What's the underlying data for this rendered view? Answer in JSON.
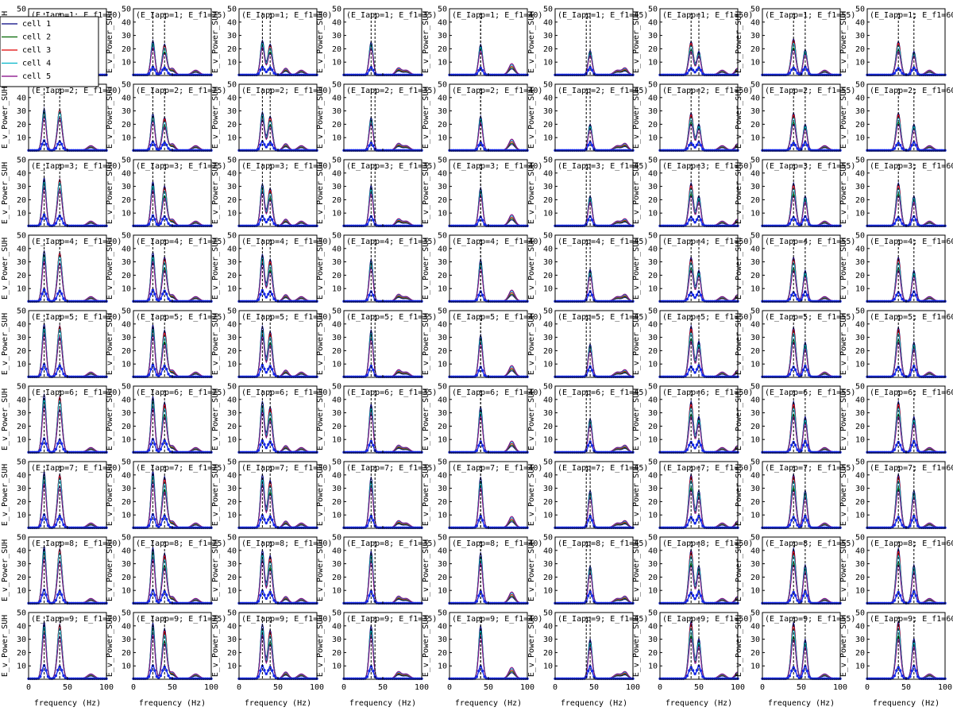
{
  "chart_data": {
    "type": "line",
    "layout": "grid of small multiples: rows = E_Iapp 1-9, columns = E_f1 20-60",
    "x_axis": {
      "label": "frequency (Hz)",
      "range": [
        0,
        100
      ],
      "ticks": [
        0,
        50,
        100
      ]
    },
    "y_axis": {
      "label": "E_v_Power_SUH",
      "range": [
        0,
        50
      ],
      "ticks": [
        10,
        20,
        30,
        40,
        50
      ]
    },
    "panel_title_format": "(E_Iapp={r}; E_f1={c})",
    "rows": [
      1,
      2,
      3,
      4,
      5,
      6,
      7,
      8,
      9
    ],
    "columns": [
      20,
      25,
      30,
      35,
      40,
      45,
      50,
      55,
      60
    ],
    "second_frequency_hz": 40,
    "legend": {
      "placement": "top-left panel, upper-left corner",
      "entries": [
        "cell 1",
        "cell 2",
        "cell 3",
        "cell 4",
        "cell 5"
      ]
    },
    "series_colors": {
      "cell 1": "#00007f",
      "cell 2": "#006400",
      "cell 3": "#e00000",
      "cell 4": "#00b4c8",
      "cell 5": "#800080",
      "mean": "#1428e6",
      "stimulus_marker": "#000000"
    },
    "peak_heights_estimate": {
      "note": "approximate tallest peak per panel, rows = E_Iapp 1..9, cols = E_f1 20..60",
      "values": [
        [
          30,
          27,
          27,
          26,
          24,
          26,
          25,
          27,
          25
        ],
        [
          33,
          29,
          30,
          26,
          27,
          28,
          28,
          28,
          28
        ],
        [
          38,
          35,
          33,
          32,
          30,
          32,
          32,
          32,
          32
        ],
        [
          40,
          39,
          37,
          33,
          33,
          34,
          33,
          33,
          33
        ],
        [
          42,
          41,
          40,
          37,
          33,
          35,
          38,
          37,
          37
        ],
        [
          46,
          44,
          40,
          38,
          36,
          36,
          38,
          38,
          38
        ],
        [
          44,
          45,
          42,
          40,
          40,
          40,
          40,
          40,
          40
        ],
        [
          45,
          44,
          42,
          41,
          40,
          40,
          40,
          41,
          41
        ],
        [
          45,
          44,
          43,
          42,
          42,
          42,
          43,
          42,
          43
        ]
      ]
    }
  }
}
